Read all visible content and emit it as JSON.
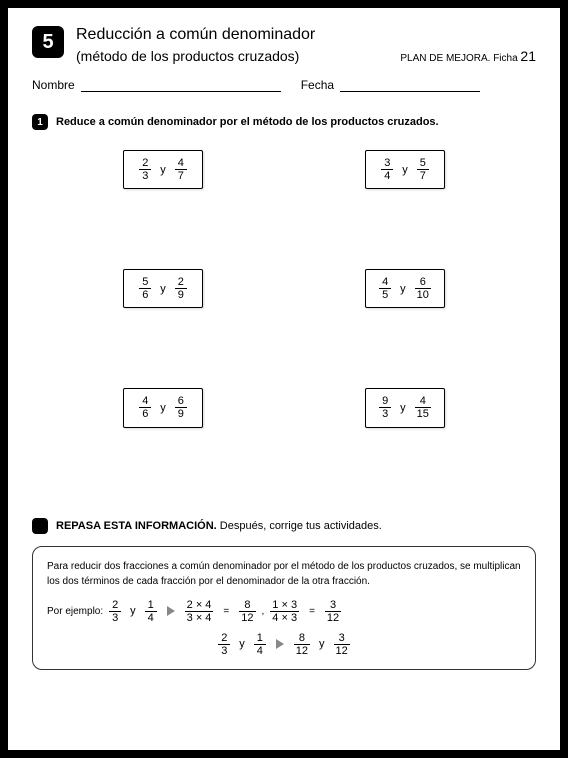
{
  "unit_number": "5",
  "title": "Reducción a común denominador",
  "subtitle": "(método de los productos cruzados)",
  "plan_label": "PLAN DE MEJORA. Ficha ",
  "plan_number": "21",
  "field_name": "Nombre",
  "field_date": "Fecha",
  "ex1_number": "1",
  "ex1_instruction": "Reduce a común denominador por el método de los productos cruzados.",
  "y": "y",
  "problems": [
    {
      "a_num": "2",
      "a_den": "3",
      "b_num": "4",
      "b_den": "7"
    },
    {
      "a_num": "3",
      "a_den": "4",
      "b_num": "5",
      "b_den": "7"
    },
    {
      "a_num": "5",
      "a_den": "6",
      "b_num": "2",
      "b_den": "9"
    },
    {
      "a_num": "4",
      "a_den": "5",
      "b_num": "6",
      "b_den": "10"
    },
    {
      "a_num": "4",
      "a_den": "6",
      "b_num": "6",
      "b_den": "9"
    },
    {
      "a_num": "9",
      "a_den": "3",
      "b_num": "4",
      "b_den": "15"
    }
  ],
  "review_title": "REPASA ESTA INFORMACIÓN.",
  "review_after": " Después, corrige tus actividades.",
  "review_text": "Para reducir dos fracciones a común denominador por el método de los productos cruzados, se multiplican los dos términos de cada fracción por el denominador de la otra fracción.",
  "example_label": "Por ejemplo: ",
  "ex": {
    "f1n": "2",
    "f1d": "3",
    "f2n": "1",
    "f2d": "4",
    "s1n": "2 × 4",
    "s1d": "3 × 4",
    "s1rn": "8",
    "s1rd": "12",
    "s2n": "1 × 3",
    "s2d": "4 × 3",
    "s2rn": "3",
    "s2rd": "12",
    "r1n": "8",
    "r1d": "12",
    "r2n": "3",
    "r2d": "12"
  },
  "colors": {
    "badge_bg": "#000000",
    "badge_fg": "#ffffff",
    "border": "#000000"
  }
}
